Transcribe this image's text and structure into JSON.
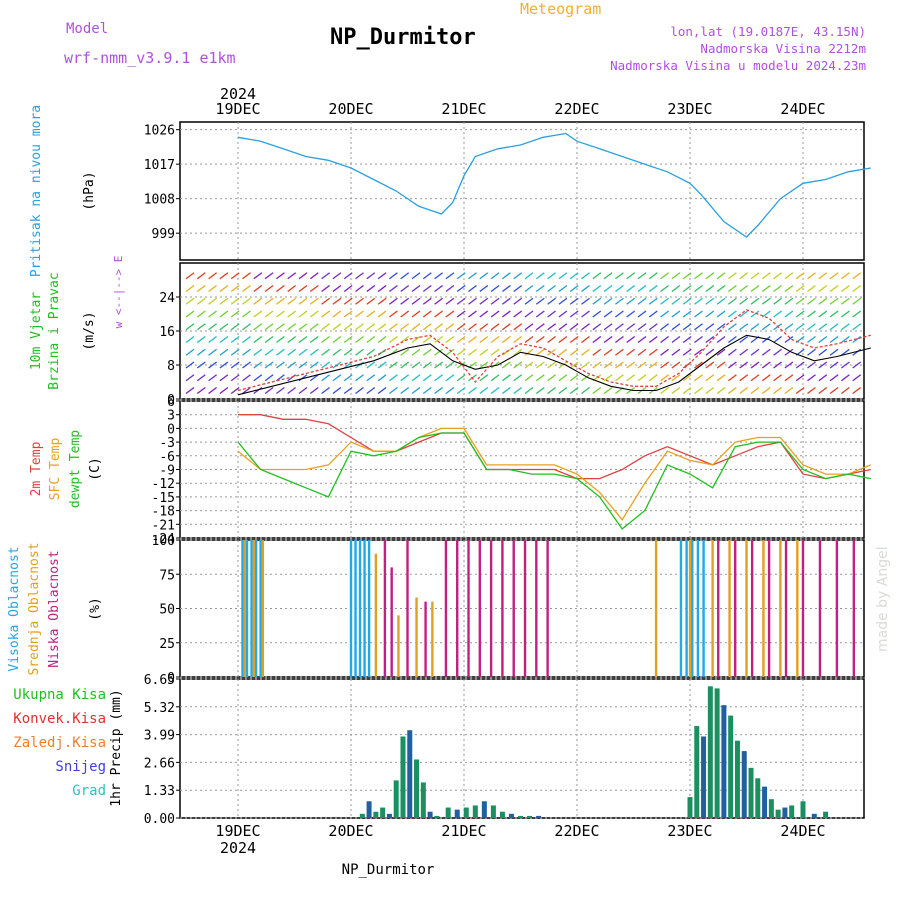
{
  "header": {
    "model_label": "Model",
    "model_name": "wrf-nmm_v3.9.1 e1km",
    "title": "NP_Durmitor",
    "subtitle": "Meteogram",
    "location_line": "lon,lat (19.0187E, 43.15N)",
    "elevation_line": "Nadmorska Visina 2212m",
    "model_elevation_line": "Nadmorska Visina u modelu 2024.23m",
    "top_year": "2024",
    "bottom_year": "2024",
    "footer_station": "NP_Durmitor",
    "watermark": "made by Angel"
  },
  "colors": {
    "purple": "#b050e0",
    "orange": "#f0b030",
    "pressure": "#2aa0e0",
    "temp2m": "#e04040",
    "sfc_temp": "#e8a020",
    "dewpt": "#20c020",
    "high_cloud": "#20a8e8",
    "mid_cloud": "#e0a020",
    "low_cloud": "#c02080",
    "total_rain": "#20c020",
    "conv_rain": "#e03030",
    "freezing_rain": "#f08030",
    "snow": "#4040e0",
    "hail": "#30c0c0",
    "gust": "#e04040"
  },
  "chart_data": [
    {
      "type": "line",
      "panel": "pressure",
      "ylabel_main": "Pritisak na nivou mora",
      "ylabel_unit": "(hPa)",
      "x_day_labels": [
        "19DEC",
        "20DEC",
        "21DEC",
        "22DEC",
        "23DEC",
        "24DEC"
      ],
      "ylim": [
        992,
        1028
      ],
      "yticks": [
        999,
        1008,
        1017,
        1026
      ],
      "x_days": [
        0.0,
        0.2,
        0.4,
        0.6,
        0.8,
        1.0,
        1.2,
        1.4,
        1.6,
        1.8,
        1.9,
        2.0,
        2.1,
        2.3,
        2.5,
        2.7,
        2.9,
        3.0,
        3.2,
        3.4,
        3.6,
        3.8,
        4.0,
        4.1,
        4.3,
        4.5,
        4.6,
        4.8,
        5.0,
        5.2,
        5.4,
        5.6
      ],
      "values": [
        1024,
        1023,
        1021,
        1019,
        1018,
        1016,
        1013,
        1010,
        1006,
        1004,
        1007,
        1014,
        1019,
        1021,
        1022,
        1024,
        1025,
        1023,
        1021,
        1019,
        1017,
        1015,
        1012,
        1009,
        1002,
        998,
        1001,
        1008,
        1012,
        1013,
        1015,
        1016
      ]
    },
    {
      "type": "line",
      "panel": "wind",
      "ylabel_main": "10m Vjetar",
      "ylabel_sub": "Brzina i Pravac",
      "ylabel_unit": "(m/s)",
      "compass_label": "w <--|--> E",
      "ylim": [
        0,
        32
      ],
      "yticks": [
        0,
        8,
        16,
        24
      ],
      "barb_rows": [
        2,
        5,
        8,
        11,
        14,
        17,
        20,
        23,
        26,
        29
      ],
      "x_days": [
        0.0,
        0.3,
        0.6,
        0.9,
        1.2,
        1.5,
        1.7,
        1.9,
        2.1,
        2.3,
        2.5,
        2.7,
        2.9,
        3.1,
        3.3,
        3.5,
        3.7,
        3.9,
        4.1,
        4.3,
        4.5,
        4.7,
        4.9,
        5.1,
        5.3,
        5.6
      ],
      "series": [
        {
          "values": [
            1,
            3,
            5,
            7,
            9,
            12,
            13,
            9,
            7,
            8,
            11,
            10,
            8,
            5,
            3,
            2,
            2,
            4,
            8,
            12,
            15,
            14,
            11,
            9,
            10,
            12
          ]
        },
        {
          "values": [
            2,
            4,
            6,
            8,
            10,
            14,
            15,
            11,
            4,
            10,
            13,
            12,
            9,
            6,
            4,
            3,
            3,
            6,
            11,
            17,
            21,
            19,
            14,
            12,
            13,
            15
          ]
        }
      ]
    },
    {
      "type": "line",
      "panel": "temperature",
      "ylabel_lines": [
        "2m Temp",
        "SFC Temp",
        "dewpt Temp"
      ],
      "ylabel_unit": "(C)",
      "ylim": [
        -24,
        6
      ],
      "yticks": [
        -24,
        -21,
        -18,
        -15,
        -12,
        -9,
        -6,
        -3,
        0,
        3,
        6
      ],
      "x_days": [
        0.0,
        0.2,
        0.4,
        0.6,
        0.8,
        1.0,
        1.2,
        1.4,
        1.6,
        1.8,
        2.0,
        2.2,
        2.4,
        2.6,
        2.8,
        3.0,
        3.2,
        3.4,
        3.6,
        3.8,
        4.0,
        4.2,
        4.4,
        4.6,
        4.8,
        5.0,
        5.2,
        5.4,
        5.6
      ],
      "series": [
        {
          "name": "2m Temp",
          "values": [
            3,
            3,
            2,
            2,
            1,
            -2,
            -5,
            -5,
            -3,
            -1,
            -1,
            -9,
            -9,
            -9,
            -9,
            -11,
            -11,
            -9,
            -6,
            -4,
            -6,
            -8,
            -6,
            -4,
            -3,
            -10,
            -11,
            -10,
            -9
          ]
        },
        {
          "name": "SFC Temp",
          "values": [
            -5,
            -9,
            -9,
            -9,
            -8,
            -3,
            -5,
            -5,
            -2,
            0,
            0,
            -8,
            -8,
            -8,
            -8,
            -10,
            -14,
            -20,
            -12,
            -5,
            -7,
            -8,
            -3,
            -2,
            -2,
            -8,
            -10,
            -10,
            -8
          ]
        },
        {
          "name": "dewpt Temp",
          "values": [
            -3,
            -9,
            -11,
            -13,
            -15,
            -5,
            -6,
            -5,
            -2,
            -1,
            -1,
            -9,
            -9,
            -10,
            -10,
            -11,
            -15,
            -22,
            -18,
            -8,
            -10,
            -13,
            -4,
            -3,
            -3,
            -9,
            -11,
            -10,
            -11
          ]
        }
      ]
    },
    {
      "type": "bar",
      "panel": "cloud",
      "ylabel_lines": [
        "Visoka Oblacnost",
        "Srednja Oblacnost",
        "Niska Oblacnost"
      ],
      "ylabel_unit": "(%)",
      "ylim": [
        0,
        100
      ],
      "yticks": [
        0,
        25,
        50,
        75,
        100
      ],
      "series": [
        {
          "name": "Visoka Oblacnost",
          "x_days": [
            0.04,
            0.08,
            0.12,
            0.16,
            0.2,
            1.0,
            1.04,
            1.08,
            1.12,
            1.16,
            3.92,
            3.97,
            4.02,
            4.07,
            4.12
          ],
          "values": [
            100,
            100,
            100,
            100,
            100,
            100,
            100,
            100,
            100,
            100,
            100,
            100,
            100,
            100,
            100
          ]
        },
        {
          "name": "Srednja Oblacnost",
          "x_days": [
            0.06,
            0.14,
            0.22,
            1.22,
            1.42,
            1.58,
            1.72,
            3.7,
            4.0,
            4.2,
            4.35,
            4.5,
            4.65,
            4.8,
            4.95
          ],
          "values": [
            100,
            100,
            100,
            90,
            45,
            58,
            55,
            100,
            100,
            100,
            100,
            100,
            100,
            100,
            100
          ]
        },
        {
          "name": "Niska Oblacnost",
          "x_days": [
            1.3,
            1.36,
            1.5,
            1.66,
            1.84,
            1.94,
            2.04,
            2.14,
            2.24,
            2.34,
            2.44,
            2.54,
            2.64,
            2.74,
            4.25,
            4.4,
            4.55,
            4.7,
            4.85,
            5.0,
            5.15,
            5.3,
            5.45
          ],
          "values": [
            100,
            80,
            100,
            55,
            100,
            100,
            100,
            100,
            100,
            100,
            100,
            100,
            100,
            100,
            100,
            100,
            100,
            100,
            100,
            100,
            100,
            100,
            100
          ]
        }
      ]
    },
    {
      "type": "bar",
      "panel": "precipitation",
      "legend": [
        "Ukupna Kisa",
        "Konvek.Kisa",
        "Zaledj.Kisa",
        "Snijeg",
        "Grad"
      ],
      "ylabel_main": "1hr Precip",
      "ylabel_unit": "(mm)",
      "ylim": [
        0,
        6.65
      ],
      "yticks": [
        0,
        1.33,
        2.66,
        3.99,
        5.32,
        6.65
      ],
      "x_days": [
        1.1,
        1.16,
        1.22,
        1.28,
        1.34,
        1.4,
        1.46,
        1.52,
        1.58,
        1.64,
        1.7,
        1.76,
        1.86,
        1.94,
        2.02,
        2.1,
        2.18,
        2.26,
        2.34,
        2.42,
        2.5,
        2.58,
        2.66,
        4.0,
        4.06,
        4.12,
        4.18,
        4.24,
        4.3,
        4.36,
        4.42,
        4.48,
        4.54,
        4.6,
        4.66,
        4.72,
        4.78,
        4.84,
        4.9,
        5.0,
        5.1,
        5.2
      ],
      "values": [
        0.2,
        0.8,
        0.3,
        0.5,
        0.2,
        1.8,
        3.9,
        4.2,
        2.8,
        1.7,
        0.3,
        0.1,
        0.5,
        0.4,
        0.5,
        0.6,
        0.8,
        0.6,
        0.3,
        0.2,
        0.1,
        0.1,
        0.1,
        1.0,
        4.4,
        3.9,
        6.3,
        6.2,
        5.4,
        4.9,
        3.7,
        3.2,
        2.4,
        1.9,
        1.5,
        0.9,
        0.4,
        0.5,
        0.6,
        0.8,
        0.2,
        0.3
      ]
    }
  ]
}
